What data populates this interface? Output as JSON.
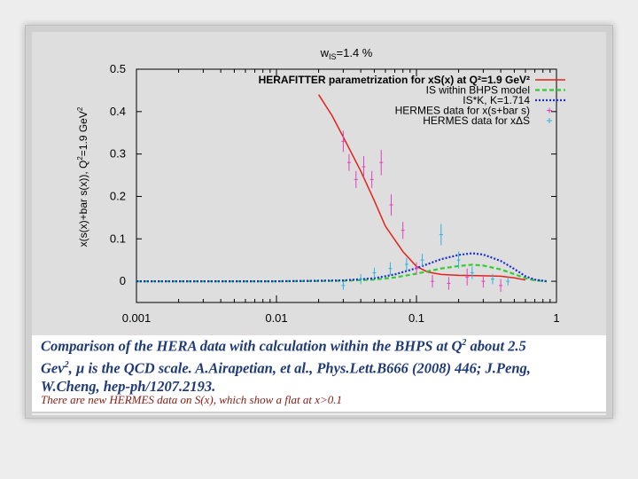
{
  "chart_data": {
    "type": "line",
    "title": "w",
    "title_sub": "IS",
    "title_rest": "=1.4 %",
    "ylabel": "x(s(x)+bar s(x)),  Q",
    "ylabel_sup": "2",
    "ylabel_rest": "=1.9 GeV",
    "ylabel_sup2": "2",
    "xscale": "log",
    "xlim": [
      0.001,
      1
    ],
    "ylim": [
      -0.05,
      0.5
    ],
    "xticks": [
      0.001,
      0.01,
      0.1,
      1
    ],
    "xtick_labels": [
      "0.001",
      "0.01",
      "0.1",
      "1"
    ],
    "yticks": [
      0,
      0.1,
      0.2,
      0.3,
      0.4,
      0.5
    ],
    "ytick_labels": [
      "0",
      "0.1",
      "0.2",
      "0.3",
      "0.4",
      "0.5"
    ],
    "legend_position": "top-right",
    "series": [
      {
        "name": "HERAFITTER parametrization for xS(x) at Q²=1.9 GeV²",
        "style": "solid",
        "color": "#e2231a",
        "x": [
          0.02,
          0.025,
          0.03,
          0.04,
          0.05,
          0.06,
          0.08,
          0.1,
          0.12,
          0.15,
          0.2,
          0.3,
          0.4,
          0.5,
          0.6
        ],
        "y": [
          0.44,
          0.39,
          0.34,
          0.26,
          0.19,
          0.13,
          0.07,
          0.035,
          0.022,
          0.016,
          0.014,
          0.013,
          0.012,
          0.008,
          0.003
        ]
      },
      {
        "name": "IS within BHPS model",
        "style": "dashed",
        "color": "#33cc33",
        "x": [
          0.001,
          0.01,
          0.03,
          0.05,
          0.07,
          0.1,
          0.15,
          0.2,
          0.25,
          0.3,
          0.4,
          0.5,
          0.6,
          0.7,
          0.85
        ],
        "y": [
          0.0,
          0.0,
          0.001,
          0.004,
          0.009,
          0.018,
          0.03,
          0.036,
          0.039,
          0.037,
          0.028,
          0.017,
          0.007,
          0.002,
          0.0
        ]
      },
      {
        "name": "IS*K, K=1.714",
        "style": "dotted",
        "color": "#1a2ed6",
        "x": [
          0.001,
          0.01,
          0.03,
          0.05,
          0.07,
          0.1,
          0.15,
          0.2,
          0.25,
          0.3,
          0.4,
          0.5,
          0.6,
          0.7,
          0.85
        ],
        "y": [
          0.0,
          0.0,
          0.002,
          0.007,
          0.016,
          0.031,
          0.052,
          0.062,
          0.066,
          0.063,
          0.048,
          0.029,
          0.012,
          0.004,
          0.0
        ]
      },
      {
        "name": "HERMES data for x(s+bar s)",
        "style": "points",
        "color": "#e040c0",
        "x": [
          0.03,
          0.033,
          0.037,
          0.042,
          0.048,
          0.056,
          0.066,
          0.08,
          0.1,
          0.13,
          0.17,
          0.23,
          0.3,
          0.4
        ],
        "y": [
          0.33,
          0.28,
          0.24,
          0.27,
          0.24,
          0.28,
          0.18,
          0.12,
          0.03,
          0.0,
          -0.005,
          0.01,
          0.0,
          -0.01
        ],
        "err": [
          0.025,
          0.02,
          0.02,
          0.025,
          0.02,
          0.03,
          0.025,
          0.02,
          0.015,
          0.015,
          0.015,
          0.02,
          0.015,
          0.015
        ]
      },
      {
        "name": "HERMES data for xΔS",
        "style": "points",
        "color": "#2fb3e0",
        "x": [
          0.03,
          0.04,
          0.05,
          0.065,
          0.085,
          0.11,
          0.15,
          0.2,
          0.25,
          0.35,
          0.45
        ],
        "y": [
          -0.01,
          0.005,
          0.02,
          0.03,
          0.04,
          0.05,
          0.11,
          0.05,
          0.02,
          0.005,
          0.0
        ],
        "err": [
          0.01,
          0.012,
          0.012,
          0.015,
          0.015,
          0.015,
          0.025,
          0.02,
          0.015,
          0.012,
          0.01
        ]
      }
    ]
  },
  "caption": {
    "line1_a": "Comparison of the HERA data with  calculation within the BHPS at Q",
    "line1_sup": "2",
    "line1_b": " about 2.5",
    "line2_a": "Gev",
    "line2_sup": "2",
    "line2_b": ", µ is the QCD scale. A.Airapetian, et al., Phys.Lett.B666 (2008) 446; J.Peng,",
    "line3": "W.Cheng, hep-ph/1207.2193."
  },
  "note": "There are new HERMES data on S(x), which show a flat at x>0.1"
}
